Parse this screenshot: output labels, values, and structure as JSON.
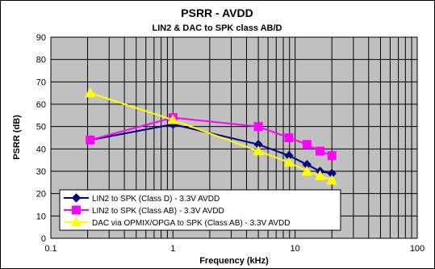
{
  "chart_data": {
    "type": "line",
    "title": "PSRR - AVDD",
    "subtitle": "LIN2 & DAC to SPK class AB/D",
    "xlabel": "Frequency (kHz)",
    "ylabel": "PSRR (dB)",
    "xscale": "log",
    "xlim": [
      0.1,
      100
    ],
    "ylim": [
      0,
      90
    ],
    "x_ticks": [
      0.1,
      1,
      10,
      100
    ],
    "x_tick_labels": [
      "0.1",
      "1",
      "10",
      "100"
    ],
    "y_ticks": [
      0,
      10,
      20,
      30,
      40,
      50,
      60,
      70,
      80,
      90
    ],
    "y_tick_labels": [
      "0",
      "10",
      "20",
      "30",
      "40",
      "50",
      "60",
      "70",
      "80",
      "90"
    ],
    "grid": true,
    "plot_background": "#c0c0c0",
    "legend_position": "bottom-left",
    "series": [
      {
        "name": "LIN2 to SPK (Class D) - 3.3V AVDD",
        "color": "#000080",
        "marker": "diamond",
        "x": [
          0.21,
          1,
          5,
          8.9,
          12.5,
          16,
          20
        ],
        "y": [
          44,
          51,
          42,
          37,
          33,
          30,
          29
        ]
      },
      {
        "name": "LIN2 to SPK (Class AB) - 3.3V AVDD",
        "color": "#ff00ff",
        "marker": "square",
        "x": [
          0.21,
          1,
          5,
          8.9,
          12.5,
          16,
          20
        ],
        "y": [
          44,
          54,
          50,
          45,
          42,
          39,
          37
        ]
      },
      {
        "name": "DAC via OPMIX/OPGA to SPK (Class AB) - 3.3V AVDD",
        "color": "#ffff00",
        "marker": "triangle",
        "x": [
          0.21,
          1,
          5,
          8.9,
          12.5,
          16,
          20
        ],
        "y": [
          65,
          53,
          39,
          34,
          30,
          28,
          26
        ]
      }
    ]
  }
}
